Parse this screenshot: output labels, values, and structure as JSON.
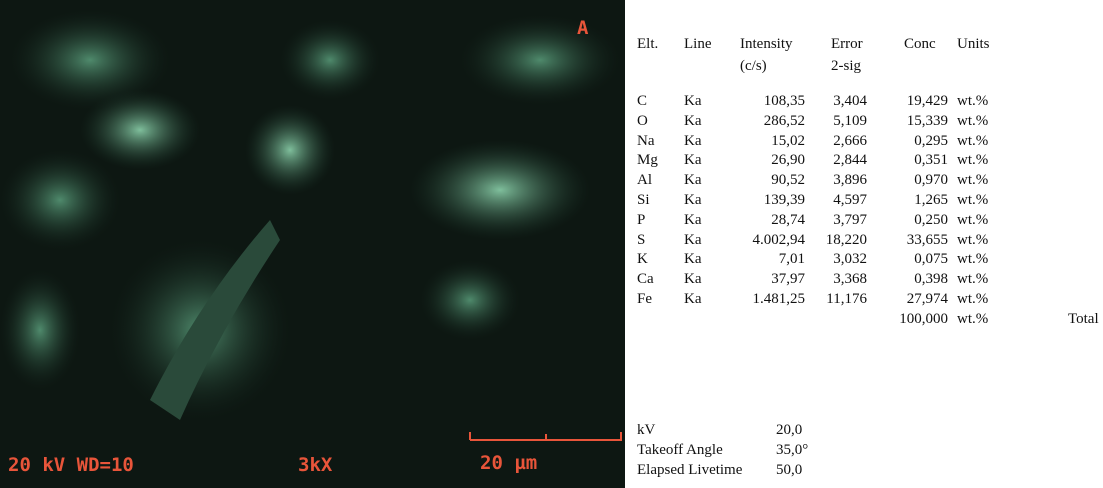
{
  "image": {
    "label": "A",
    "info_left": "20 kV WD=10",
    "magnification": "3kX",
    "scale_bar": "20 µm"
  },
  "table": {
    "headers": [
      [
        "Elt."
      ],
      [
        "Line"
      ],
      [
        "Intensity",
        "(c/s)"
      ],
      [
        "Error",
        "2-sig"
      ],
      [
        "Conc"
      ],
      [
        "Units"
      ]
    ],
    "rows": [
      [
        "C",
        "Ka",
        "108,35",
        "3,404",
        "19,429",
        "wt.%"
      ],
      [
        "O",
        "Ka",
        "286,52",
        "5,109",
        "15,339",
        "wt.%"
      ],
      [
        "Na",
        "Ka",
        "15,02",
        "2,666",
        "0,295",
        "wt.%"
      ],
      [
        "Mg",
        "Ka",
        "26,90",
        "2,844",
        "0,351",
        "wt.%"
      ],
      [
        "Al",
        "Ka",
        "90,52",
        "3,896",
        "0,970",
        "wt.%"
      ],
      [
        "Si",
        "Ka",
        "139,39",
        "4,597",
        "1,265",
        "wt.%"
      ],
      [
        "P",
        "Ka",
        "28,74",
        "3,797",
        "0,250",
        "wt.%"
      ],
      [
        "S",
        "Ka",
        "4.002,94",
        "18,220",
        "33,655",
        "wt.%"
      ],
      [
        "K",
        "Ka",
        "7,01",
        "3,032",
        "0,075",
        "wt.%"
      ],
      [
        "Ca",
        "Ka",
        "37,97",
        "3,368",
        "0,398",
        "wt.%"
      ],
      [
        "Fe",
        "Ka",
        "1.481,25",
        "11,176",
        "27,974",
        "wt.%"
      ]
    ],
    "total": {
      "conc": "100,000",
      "units": "wt.%",
      "label": "Total"
    }
  },
  "settings": [
    [
      "kV",
      "20,0"
    ],
    [
      "Takeoff Angle",
      "35,0°"
    ],
    [
      "Elapsed Livetime",
      "50,0"
    ]
  ]
}
